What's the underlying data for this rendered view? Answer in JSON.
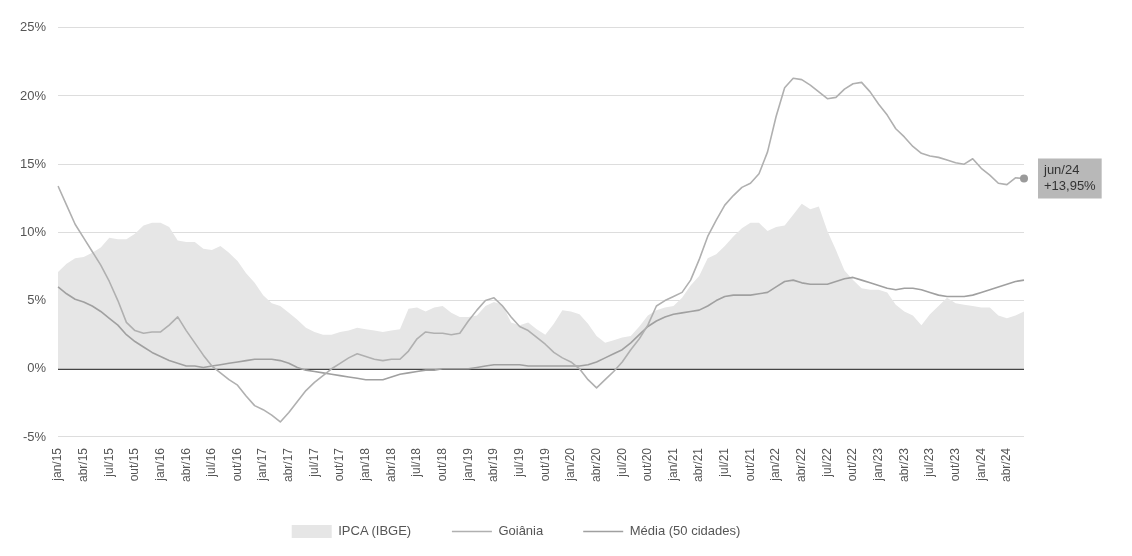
{
  "chart_data": {
    "type": "line",
    "categories": [
      "jan/15",
      null,
      null,
      "abr/15",
      null,
      null,
      "jul/15",
      null,
      null,
      "out/15",
      null,
      null,
      "jan/16",
      null,
      null,
      "abr/16",
      null,
      null,
      "jul/16",
      null,
      null,
      "out/16",
      null,
      null,
      "jan/17",
      null,
      null,
      "abr/17",
      null,
      null,
      "jul/17",
      null,
      null,
      "out/17",
      null,
      null,
      "jan/18",
      null,
      null,
      "abr/18",
      null,
      null,
      "jul/18",
      null,
      null,
      "out/18",
      null,
      null,
      "jan/19",
      null,
      null,
      "abr/19",
      null,
      null,
      "jul/19",
      null,
      null,
      "out/19",
      null,
      null,
      "jan/20",
      null,
      null,
      "abr/20",
      null,
      null,
      "jul/20",
      null,
      null,
      "out/20",
      null,
      null,
      "jan/21",
      null,
      null,
      "abr/21",
      null,
      null,
      "jul/21",
      null,
      null,
      "out/21",
      null,
      null,
      "jan/22",
      null,
      null,
      "abr/22",
      null,
      null,
      "jul/22",
      null,
      null,
      "out/22",
      null,
      null,
      "jan/23",
      null,
      null,
      "abr/23",
      null,
      null,
      "jul/23",
      null,
      null,
      "out/23",
      null,
      null,
      "jan/24",
      null,
      null,
      "abr/24",
      null,
      null
    ],
    "series": [
      {
        "name": "IPCA (IBGE)",
        "type": "area",
        "color": "#e6e6e6",
        "values": [
          7.1,
          7.7,
          8.1,
          8.2,
          8.5,
          8.9,
          9.6,
          9.5,
          9.5,
          9.9,
          10.5,
          10.7,
          10.7,
          10.4,
          9.4,
          9.3,
          9.3,
          8.8,
          8.7,
          9.0,
          8.5,
          7.9,
          7.0,
          6.3,
          5.4,
          4.8,
          4.6,
          4.1,
          3.6,
          3.0,
          2.7,
          2.5,
          2.5,
          2.7,
          2.8,
          3.0,
          2.9,
          2.8,
          2.7,
          2.8,
          2.9,
          4.4,
          4.5,
          4.2,
          4.5,
          4.6,
          4.1,
          3.8,
          3.8,
          3.9,
          4.6,
          4.9,
          4.7,
          3.4,
          3.2,
          3.4,
          2.9,
          2.5,
          3.3,
          4.3,
          4.2,
          4.0,
          3.3,
          2.4,
          1.9,
          2.1,
          2.3,
          2.4,
          3.1,
          3.9,
          4.3,
          4.5,
          4.6,
          5.2,
          6.1,
          6.8,
          8.1,
          8.4,
          9.0,
          9.7,
          10.3,
          10.7,
          10.7,
          10.1,
          10.4,
          10.5,
          11.3,
          12.1,
          11.7,
          11.9,
          10.1,
          8.7,
          7.2,
          6.5,
          5.9,
          5.8,
          5.8,
          5.6,
          4.7,
          4.2,
          3.9,
          3.2,
          4.0,
          4.6,
          5.2,
          4.8,
          4.7,
          4.6,
          4.5,
          4.5,
          3.9,
          3.7,
          3.9,
          4.2
        ]
      },
      {
        "name": "Goiânia",
        "type": "line",
        "color": "#b0b0b0",
        "values": [
          13.4,
          12.0,
          10.6,
          9.6,
          8.6,
          7.6,
          6.4,
          5.0,
          3.4,
          2.8,
          2.6,
          2.7,
          2.7,
          3.2,
          3.8,
          2.8,
          1.9,
          1.0,
          0.2,
          -0.3,
          -0.8,
          -1.2,
          -2.0,
          -2.7,
          -3.0,
          -3.4,
          -3.9,
          -3.2,
          -2.4,
          -1.6,
          -1.0,
          -0.5,
          0.0,
          0.4,
          0.8,
          1.1,
          0.9,
          0.7,
          0.6,
          0.7,
          0.7,
          1.3,
          2.2,
          2.7,
          2.6,
          2.6,
          2.5,
          2.6,
          3.5,
          4.3,
          5.0,
          5.2,
          4.6,
          3.8,
          3.1,
          2.8,
          2.3,
          1.8,
          1.2,
          0.8,
          0.5,
          0.0,
          -0.8,
          -1.4,
          -0.8,
          -0.2,
          0.5,
          1.4,
          2.2,
          3.2,
          4.6,
          5.0,
          5.3,
          5.6,
          6.5,
          8.0,
          9.7,
          10.9,
          12.0,
          12.7,
          13.3,
          13.6,
          14.3,
          15.9,
          18.5,
          20.6,
          21.3,
          21.2,
          20.8,
          20.3,
          19.8,
          19.9,
          20.5,
          20.9,
          21.0,
          20.3,
          19.4,
          18.6,
          17.6,
          17.0,
          16.3,
          15.8,
          15.6,
          15.5,
          15.3,
          15.1,
          15.0,
          15.4,
          14.7,
          14.2,
          13.6,
          13.5,
          14.0,
          13.95
        ]
      },
      {
        "name": "Média (50 cidades)",
        "type": "line",
        "color": "#a0a0a0",
        "values": [
          6.0,
          5.5,
          5.1,
          4.9,
          4.6,
          4.2,
          3.7,
          3.2,
          2.5,
          2.0,
          1.6,
          1.2,
          0.9,
          0.6,
          0.4,
          0.2,
          0.2,
          0.1,
          0.2,
          0.3,
          0.4,
          0.5,
          0.6,
          0.7,
          0.7,
          0.7,
          0.6,
          0.4,
          0.1,
          -0.1,
          -0.2,
          -0.3,
          -0.4,
          -0.5,
          -0.6,
          -0.7,
          -0.8,
          -0.8,
          -0.8,
          -0.6,
          -0.4,
          -0.3,
          -0.2,
          -0.1,
          -0.1,
          0.0,
          0.0,
          0.0,
          0.0,
          0.1,
          0.2,
          0.3,
          0.3,
          0.3,
          0.3,
          0.2,
          0.2,
          0.2,
          0.2,
          0.2,
          0.2,
          0.2,
          0.3,
          0.5,
          0.8,
          1.1,
          1.4,
          1.9,
          2.5,
          3.1,
          3.5,
          3.8,
          4.0,
          4.1,
          4.2,
          4.3,
          4.6,
          5.0,
          5.3,
          5.4,
          5.4,
          5.4,
          5.5,
          5.6,
          6.0,
          6.4,
          6.5,
          6.3,
          6.2,
          6.2,
          6.2,
          6.4,
          6.6,
          6.7,
          6.5,
          6.3,
          6.1,
          5.9,
          5.8,
          5.9,
          5.9,
          5.8,
          5.6,
          5.4,
          5.3,
          5.3,
          5.3,
          5.4,
          5.6,
          5.8,
          6.0,
          6.2,
          6.4,
          6.5
        ]
      }
    ],
    "ylim": [
      -5,
      25
    ],
    "yticks": [
      {
        "value": -5,
        "label": "-5%"
      },
      {
        "value": 0,
        "label": "0%"
      },
      {
        "value": 5,
        "label": "5%"
      },
      {
        "value": 10,
        "label": "10%"
      },
      {
        "value": 15,
        "label": "15%"
      },
      {
        "value": 20,
        "label": "20%"
      },
      {
        "value": 25,
        "label": "25%"
      }
    ],
    "grid": "y",
    "legend": "bottom",
    "marker": "none",
    "line_style": "solid",
    "annotations": [
      "jun/24\n+13,95%"
    ]
  }
}
